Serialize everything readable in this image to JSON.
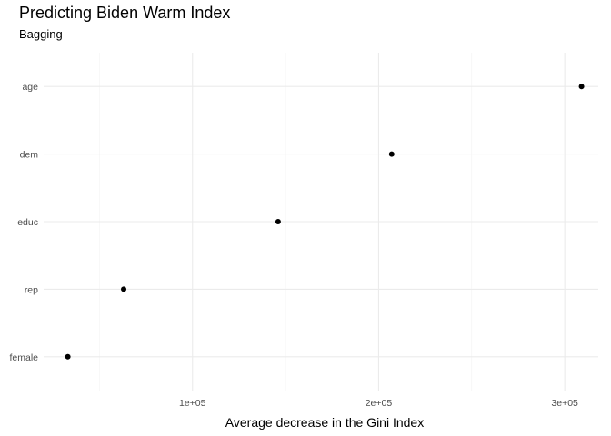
{
  "chart_data": {
    "type": "scatter",
    "title": "Predicting Biden Warm Index",
    "subtitle": "Bagging",
    "xlabel": "Average decrease in the Gini Index",
    "ylabel": "",
    "categories": [
      "female",
      "rep",
      "educ",
      "dem",
      "age"
    ],
    "values": [
      33000,
      63000,
      146000,
      207000,
      309000
    ],
    "xlim": [
      20000,
      318000
    ],
    "x_ticks": [
      100000,
      200000,
      300000
    ],
    "x_tick_labels": [
      "1e+05",
      "2e+05",
      "3e+05"
    ],
    "grid": true,
    "point_color": "#000000"
  }
}
